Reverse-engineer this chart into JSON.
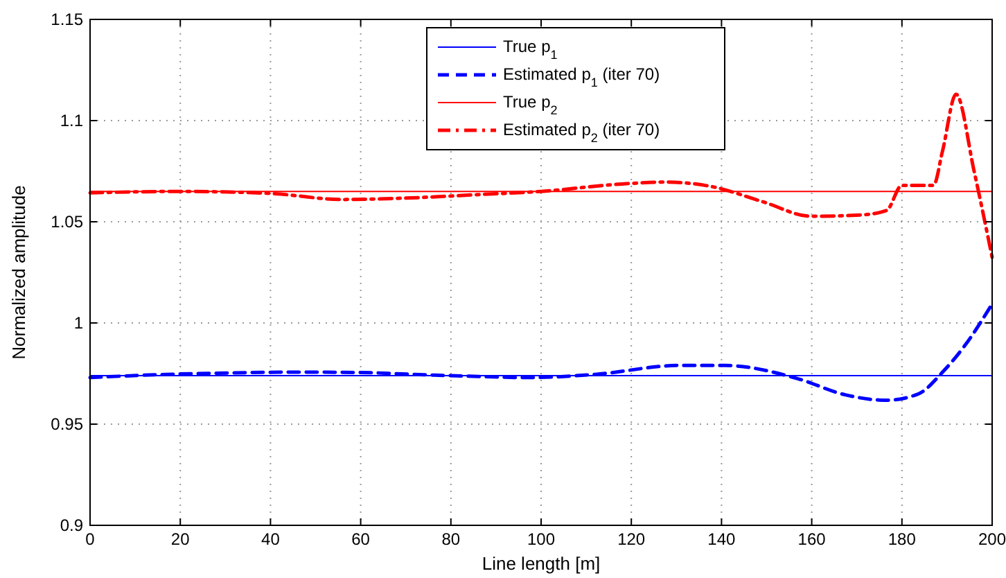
{
  "chart_data": {
    "type": "line",
    "xlabel": "Line length [m]",
    "ylabel": "Normalized amplitude",
    "xlim": [
      0,
      200
    ],
    "xticks": [
      0,
      20,
      40,
      60,
      80,
      100,
      120,
      140,
      160,
      180,
      200
    ],
    "ylim": [
      0.9,
      1.15
    ],
    "yticks": [
      0.9,
      0.95,
      1,
      1.05,
      1.1,
      1.15
    ],
    "grid": true,
    "legend": "top",
    "series": [
      {
        "name": "True p$_{1}$",
        "color": "#0000ff",
        "line_style": "solid",
        "x": [
          0,
          200
        ],
        "values": [
          0.974,
          0.974
        ]
      },
      {
        "name": "Estimated p$_{1}$ (iter 70)",
        "color": "#0000ff",
        "line_style": "dashed",
        "x": [
          0,
          17,
          31,
          44.5,
          60,
          74,
          86.6,
          97,
          112,
          130.6,
          140.7,
          157,
          167.4,
          176.6,
          183.7,
          189,
          194,
          200
        ],
        "values": [
          0.973,
          0.9746,
          0.9753,
          0.9757,
          0.9755,
          0.9744,
          0.9735,
          0.973,
          0.9746,
          0.979,
          0.979,
          0.9724,
          0.9645,
          0.9618,
          0.965,
          0.9757,
          0.989,
          1.0094
        ]
      },
      {
        "name": "True p$_{2}$",
        "color": "#ff0000",
        "line_style": "solid",
        "x": [
          0,
          200
        ],
        "values": [
          1.065,
          1.065
        ]
      },
      {
        "name": "Estimated p$_{2}$ (iter 70)",
        "color": "#ff0000",
        "line_style": "dashdot",
        "x": [
          0,
          20,
          40,
          56,
          70,
          86.6,
          100,
          118,
          127.5,
          137.6,
          149,
          160,
          171,
          176.6,
          180,
          187,
          189,
          192,
          196,
          200
        ],
        "values": [
          1.0643,
          1.065,
          1.064,
          1.061,
          1.0617,
          1.0635,
          1.065,
          1.0687,
          1.0696,
          1.0675,
          1.06,
          1.0527,
          1.0534,
          1.0556,
          1.068,
          1.068,
          1.085,
          1.113,
          1.075,
          1.0324
        ]
      }
    ]
  }
}
